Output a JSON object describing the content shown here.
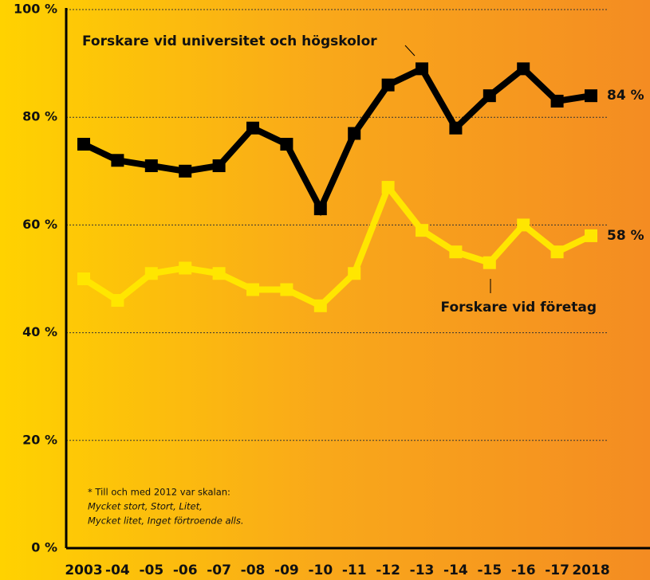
{
  "chart_data": {
    "type": "line",
    "categories": [
      "2003",
      "-04",
      "-05",
      "-06",
      "-07",
      "-08",
      "-09",
      "-10",
      "-11",
      "-12",
      "-13",
      "-14",
      "-15",
      "-16",
      "-17",
      "2018"
    ],
    "series": [
      {
        "name": "Forskare vid universitet och högskolor",
        "color": "#000000",
        "values": [
          75,
          72,
          71,
          70,
          71,
          78,
          75,
          63,
          77,
          86,
          89,
          78,
          84,
          89,
          83,
          84
        ],
        "value_labels": [
          null,
          null,
          null,
          null,
          null,
          null,
          null,
          null,
          null,
          null,
          null,
          null,
          null,
          null,
          null,
          "84 %"
        ]
      },
      {
        "name": "Forskare vid företag",
        "color": "#ffe600",
        "values": [
          50,
          46,
          51,
          52,
          51,
          48,
          48,
          45,
          51,
          67,
          59,
          55,
          53,
          60,
          55,
          58
        ],
        "value_labels": [
          null,
          null,
          null,
          null,
          null,
          null,
          null,
          null,
          null,
          null,
          null,
          null,
          null,
          null,
          null,
          "58 %"
        ]
      }
    ],
    "ylim": [
      0,
      100
    ],
    "yticks": [
      {
        "value": 0,
        "label": "0 %"
      },
      {
        "value": 20,
        "label": "20 %"
      },
      {
        "value": 40,
        "label": "40 %"
      },
      {
        "value": 60,
        "label": "60 %"
      },
      {
        "value": 80,
        "label": "80 %"
      },
      {
        "value": 100,
        "label": "100 %"
      }
    ],
    "grid": true,
    "footnote": [
      "* Till och med 2012 var skalan:",
      "Mycket stort, Stort, Litet,",
      "Mycket litet, Inget förtroende alls."
    ]
  }
}
